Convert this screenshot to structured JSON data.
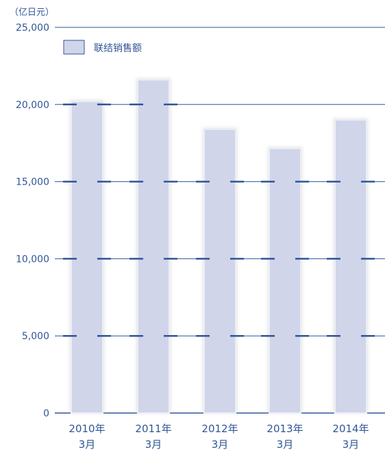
{
  "chart_data": {
    "type": "bar",
    "unit": "（亿日元）",
    "categories": [
      {
        "line1": "2010年",
        "line2": "3月"
      },
      {
        "line1": "2011年",
        "line2": "3月"
      },
      {
        "line1": "2012年",
        "line2": "3月"
      },
      {
        "line1": "2013年",
        "line2": "3月"
      },
      {
        "line1": "2014年",
        "line2": "3月"
      }
    ],
    "series": [
      {
        "name": "联结销售额",
        "values": [
          20200,
          21600,
          18400,
          17150,
          19000
        ]
      }
    ],
    "ylim": [
      0,
      25000
    ],
    "yticks": [
      {
        "value": 0,
        "label": "0"
      },
      {
        "value": 5000,
        "label": "5,000"
      },
      {
        "value": 10000,
        "label": "10,000"
      },
      {
        "value": 15000,
        "label": "15,000"
      },
      {
        "value": 20000,
        "label": "20,000"
      },
      {
        "value": 25000,
        "label": "25,000"
      }
    ],
    "grid": true,
    "legend_position": "top-left",
    "colors": {
      "bar_fill": "#d0d5ea",
      "bar_stroke": "#eceef6",
      "axis": "#2f5597",
      "grid": "#2f5597",
      "text": "#2f5597"
    }
  }
}
